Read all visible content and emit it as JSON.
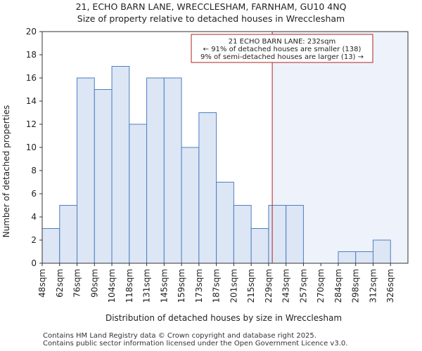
{
  "header": {
    "title_line1": "21, ECHO BARN LANE, WRECCLESHAM, FARNHAM, GU10 4NQ",
    "title_line2": "Size of property relative to detached houses in Wrecclesham"
  },
  "footer": {
    "line1": "Contains HM Land Registry data © Crown copyright and database right 2025.",
    "line2": "Contains public sector information licensed under the Open Government Licence v3.0."
  },
  "colors": {
    "bar_fill": "#dce6f5",
    "bar_stroke": "#4f7fbf",
    "marker_line": "#b22222",
    "annotation_border": "#b22222",
    "shade_region": "#eef2fb"
  },
  "chart_data": {
    "type": "bar",
    "title": "21, ECHO BARN LANE, WRECCLESHAM, FARNHAM, GU10 4NQ",
    "subtitle": "Size of property relative to detached houses in Wrecclesham",
    "xlabel": "Distribution of detached houses by size in Wrecclesham",
    "ylabel": "Number of detached properties",
    "categories": [
      "48sqm",
      "62sqm",
      "76sqm",
      "90sqm",
      "104sqm",
      "118sqm",
      "131sqm",
      "145sqm",
      "159sqm",
      "173sqm",
      "187sqm",
      "201sqm",
      "215sqm",
      "229sqm",
      "243sqm",
      "257sqm",
      "270sqm",
      "284sqm",
      "298sqm",
      "312sqm",
      "326sqm"
    ],
    "values": [
      3,
      5,
      16,
      15,
      17,
      12,
      16,
      16,
      10,
      13,
      7,
      5,
      3,
      5,
      5,
      0,
      0,
      1,
      1,
      2,
      0
    ],
    "ylim": [
      0,
      20
    ],
    "yticks": [
      0,
      2,
      4,
      6,
      8,
      10,
      12,
      14,
      16,
      18,
      20
    ],
    "grid": false,
    "marker": {
      "value_sqm": 232,
      "category_index_start": 13,
      "category_fraction": 0.21
    },
    "annotation": {
      "line1": "21 ECHO BARN LANE: 232sqm",
      "line2": "← 91% of detached houses are smaller (138)",
      "line3": "9% of semi-detached houses are larger (13) →"
    }
  }
}
